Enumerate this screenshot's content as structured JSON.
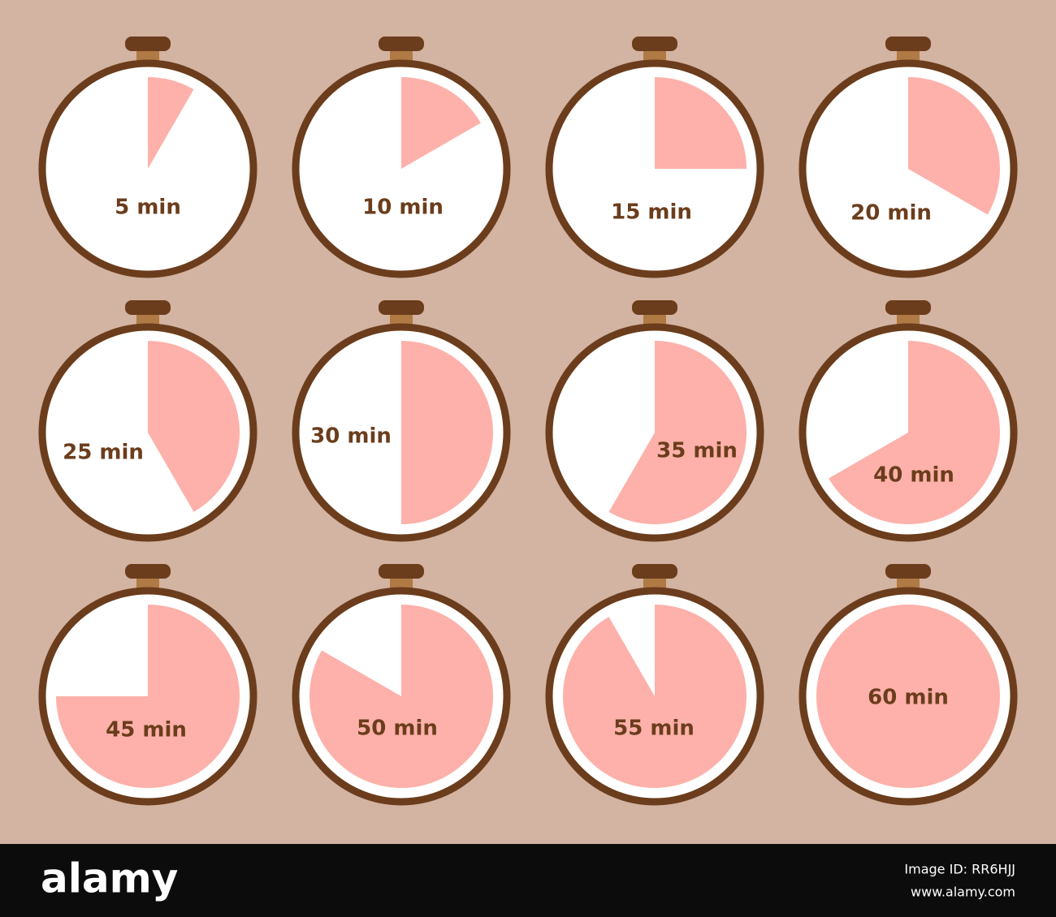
{
  "timers": [
    {
      "label": "5 min",
      "minutes": 5
    },
    {
      "label": "10 min",
      "minutes": 10
    },
    {
      "label": "15 min",
      "minutes": 15
    },
    {
      "label": "20 min",
      "minutes": 20
    },
    {
      "label": "25 min",
      "minutes": 25
    },
    {
      "label": "30 min",
      "minutes": 30
    },
    {
      "label": "35 min",
      "minutes": 35
    },
    {
      "label": "40 min",
      "minutes": 40
    },
    {
      "label": "45 min",
      "minutes": 45
    },
    {
      "label": "50 min",
      "minutes": 50
    },
    {
      "label": "55 min",
      "minutes": 55
    },
    {
      "label": "60 min",
      "minutes": 60
    }
  ],
  "footer": {
    "brand": "alamy",
    "image_id": "Image ID: RR6HJJ",
    "url": "www.alamy.com"
  }
}
